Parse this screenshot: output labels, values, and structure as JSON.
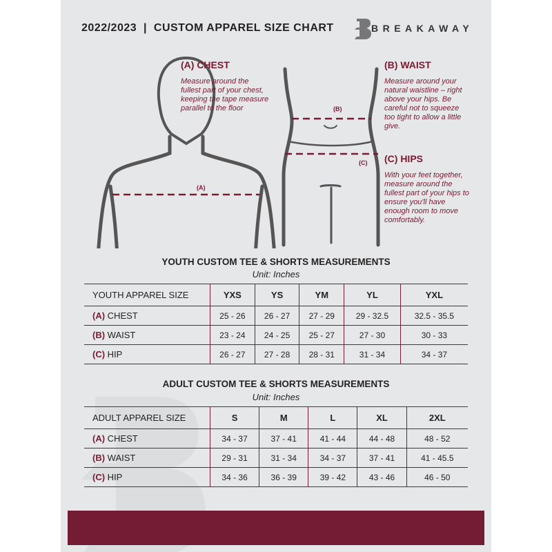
{
  "header": {
    "title": "2022/2023  |  CUSTOM APPAREL SIZE CHART",
    "brand": "BREAKAWAY",
    "logo_letter": "B"
  },
  "measures": {
    "chest": {
      "heading": "(A) CHEST",
      "text": "Measure around the fullest part of your chest, keeping the tape measure parallel to the floor",
      "marker": "(A)"
    },
    "waist": {
      "heading": "(B) WAIST",
      "text": "Measure around your natural waistline – right above your hips. Be careful not to squeeze too tight to allow a little give.",
      "marker": "(B)"
    },
    "hips": {
      "heading": "(C) HIPS",
      "text": "With your feet together, measure around the fullest part of your hips to ensure you'll have enough room to move comfortably.",
      "marker": "(C)"
    }
  },
  "colors": {
    "accent": "#7a1a33",
    "background": "#e6e7e8",
    "footer": "#741c33"
  },
  "youth": {
    "title": "YOUTH CUSTOM TEE & SHORTS MEASUREMENTS",
    "unit": "Unit: Inches",
    "size_label": "YOUTH APPAREL SIZE",
    "sizes": [
      "YXS",
      "YS",
      "YM",
      "YL",
      "YXL"
    ],
    "rows": [
      {
        "letter": "(A)",
        "name": "CHEST",
        "values": [
          "25 - 26",
          "26 - 27",
          "27 - 29",
          "29 - 32.5",
          "32.5 - 35.5"
        ]
      },
      {
        "letter": "(B)",
        "name": "WAIST",
        "values": [
          "23 - 24",
          "24 - 25",
          "25 - 27",
          "27 - 30",
          "30 - 33"
        ]
      },
      {
        "letter": "(C)",
        "name": "HIP",
        "values": [
          "26 - 27",
          "27 - 28",
          "28 - 31",
          "31 - 34",
          "34 - 37"
        ]
      }
    ]
  },
  "adult": {
    "title": "ADULT CUSTOM TEE & SHORTS MEASUREMENTS",
    "unit": "Unit: Inches",
    "size_label": "ADULT APPAREL SIZE",
    "sizes": [
      "S",
      "M",
      "L",
      "XL",
      "2XL"
    ],
    "rows": [
      {
        "letter": "(A)",
        "name": "CHEST",
        "values": [
          "34 - 37",
          "37 - 41",
          "41 - 44",
          "44 - 48",
          "48 - 52"
        ]
      },
      {
        "letter": "(B)",
        "name": "WAIST",
        "values": [
          "29 - 31",
          "31 - 34",
          "34 - 37",
          "37 - 41",
          "41 - 45.5"
        ]
      },
      {
        "letter": "(C)",
        "name": "HIP",
        "values": [
          "34 - 36",
          "36 - 39",
          "39 - 42",
          "43 - 46",
          "46 - 50"
        ]
      }
    ]
  }
}
